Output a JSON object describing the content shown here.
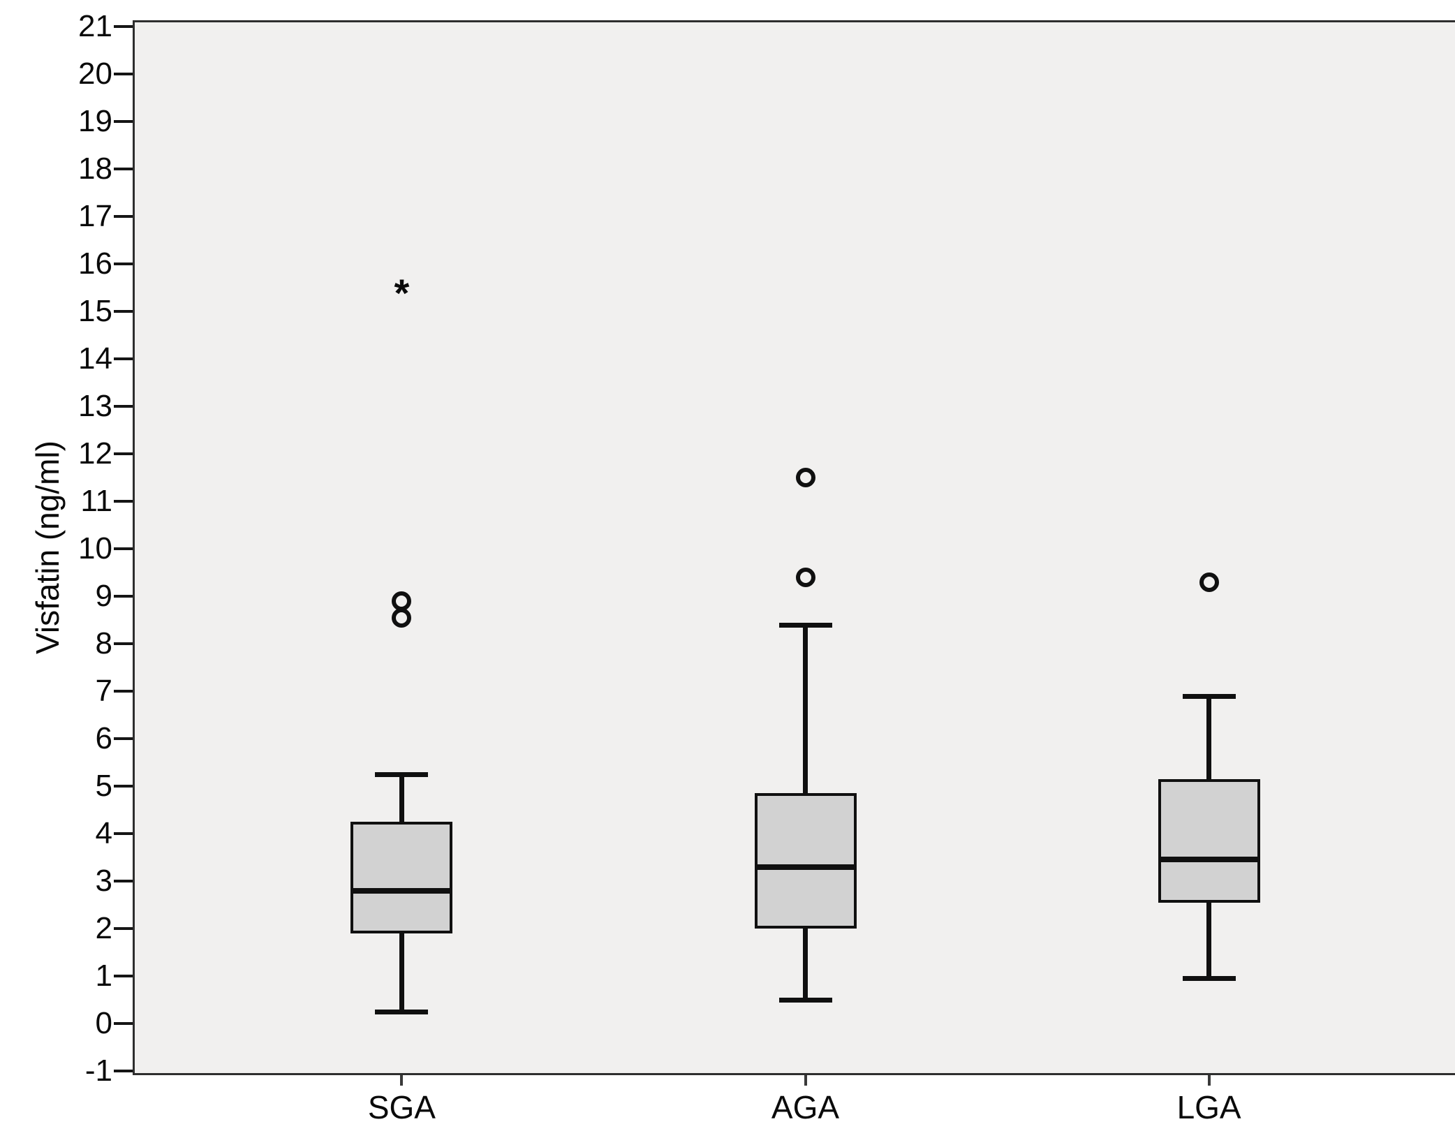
{
  "figure": {
    "title": "",
    "xlabel": ""
  },
  "chart_data": {
    "type": "boxplot",
    "title": "",
    "xlabel": "",
    "ylabel": "Visfatin (ng/ml)",
    "ylim": [
      -1,
      21
    ],
    "ytick_step": 1,
    "yticks": [
      21,
      20,
      19,
      18,
      17,
      16,
      15,
      14,
      13,
      12,
      11,
      10,
      9,
      8,
      7,
      6,
      5,
      4,
      3,
      2,
      1,
      0,
      -1
    ],
    "grid": false,
    "legend": false,
    "categories": [
      "SGA",
      "AGA",
      "LGA"
    ],
    "series": [
      {
        "name": "SGA",
        "whisker_low": 0.25,
        "q1": 1.9,
        "median": 2.8,
        "q3": 4.25,
        "whisker_high": 5.25,
        "outliers": [
          8.55,
          8.9
        ],
        "extremes": [
          15.5
        ]
      },
      {
        "name": "AGA",
        "whisker_low": 0.5,
        "q1": 2.0,
        "median": 3.3,
        "q3": 4.85,
        "whisker_high": 8.4,
        "outliers": [
          9.4,
          11.5
        ],
        "extremes": []
      },
      {
        "name": "LGA",
        "whisker_low": 0.95,
        "q1": 2.55,
        "median": 3.45,
        "q3": 5.15,
        "whisker_high": 6.9,
        "outliers": [
          9.3
        ],
        "extremes": []
      }
    ],
    "marker_legend": {
      "circle": "outlier",
      "asterisk": "extreme outlier"
    },
    "colors": {
      "box_fill": "#d2d2d2",
      "line": "#101010",
      "plot_bg": "#f1f0ef",
      "outer_bg": "#ffffff",
      "frame": "#2e2e2e"
    }
  }
}
